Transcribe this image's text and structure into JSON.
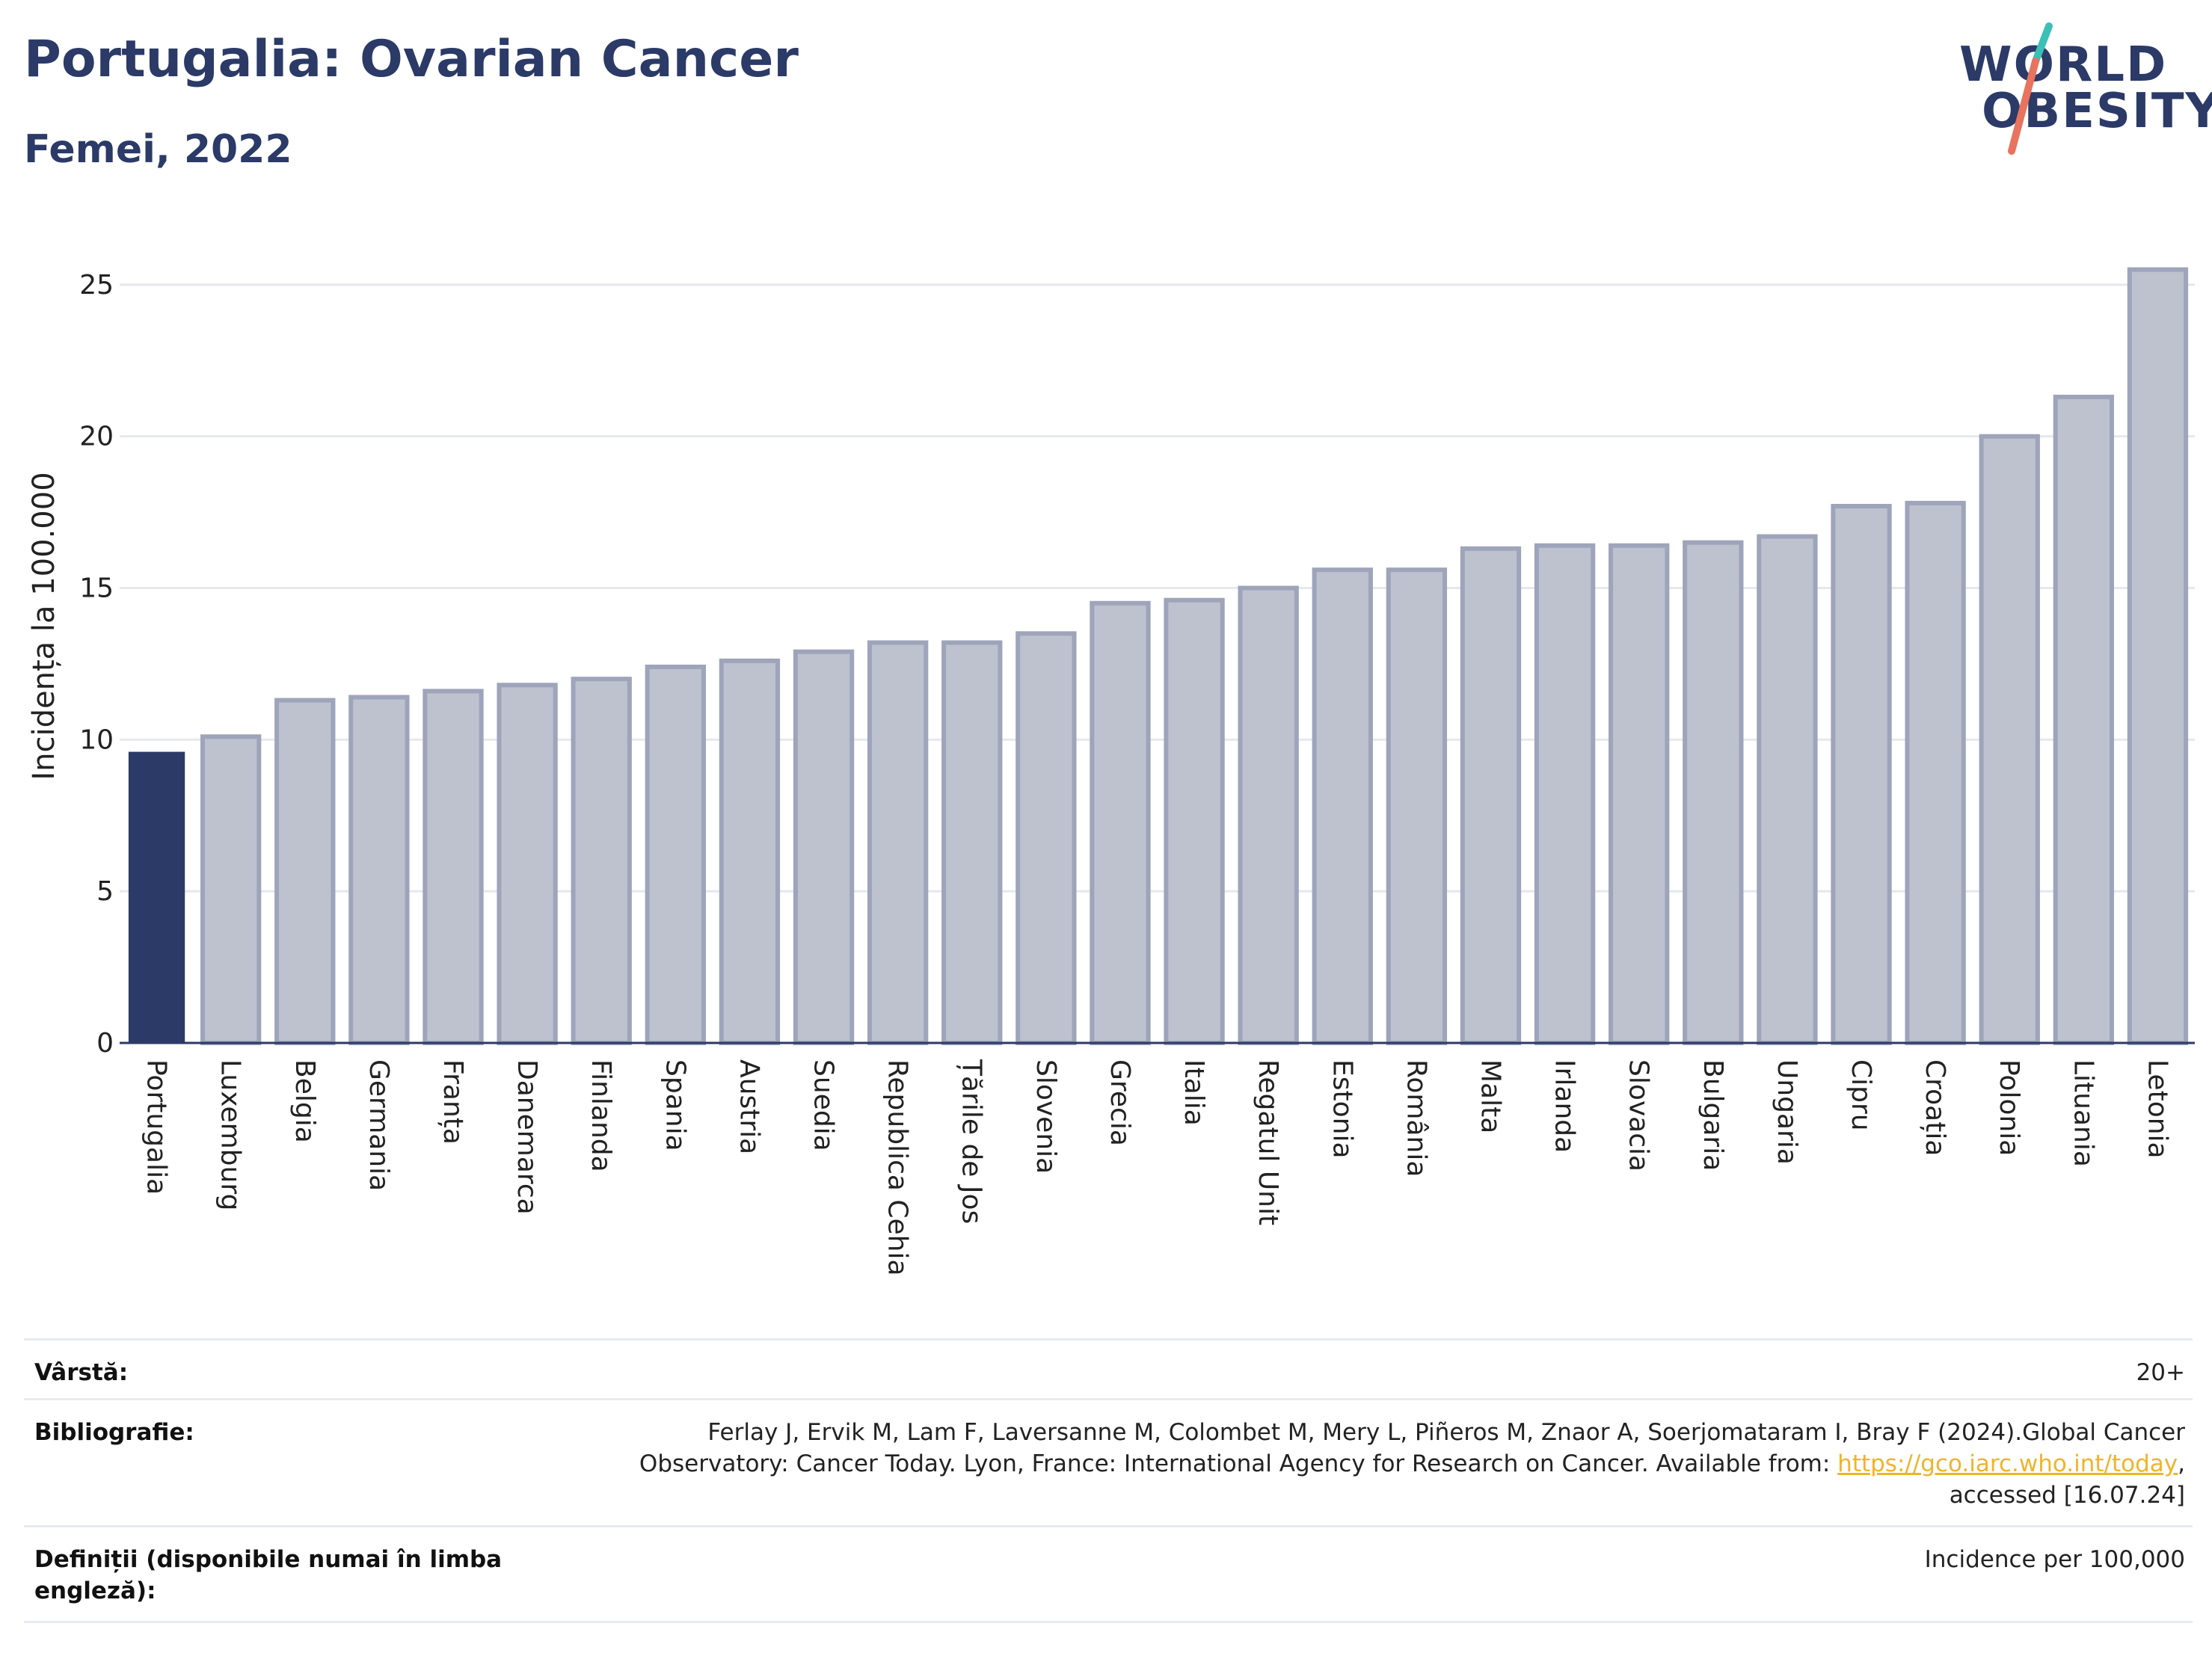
{
  "header": {
    "title": "Portugalia: Ovarian Cancer",
    "subtitle": "Femei, 2022",
    "logo_line1": "WORLD",
    "logo_line2": "OBESITY"
  },
  "colors": {
    "highlight_bar": "#2b3a67",
    "other_bar": "#bec2cf",
    "other_bar_stroke": "#9ea4ba",
    "text": "#2b3a67",
    "grid": "#e6e8ee",
    "logo_slash_teal": "#3cbfb7",
    "logo_slash_coral": "#e8735f",
    "link": "#f0b429"
  },
  "chart_data": {
    "type": "bar",
    "title": "Portugalia: Ovarian Cancer",
    "subtitle": "Femei, 2022",
    "xlabel": "",
    "ylabel": "Incidența la 100.000",
    "ylim": [
      0,
      26.5
    ],
    "yticks": [
      0,
      5,
      10,
      15,
      20,
      25
    ],
    "grid": true,
    "highlight": "Portugalia",
    "categories": [
      "Portugalia",
      "Luxemburg",
      "Belgia",
      "Germania",
      "Franța",
      "Danemarca",
      "Finlanda",
      "Spania",
      "Austria",
      "Suedia",
      "Republica Cehia",
      "Țările de Jos",
      "Slovenia",
      "Grecia",
      "Italia",
      "Regatul Unit",
      "Estonia",
      "România",
      "Malta",
      "Irlanda",
      "Slovacia",
      "Bulgaria",
      "Ungaria",
      "Cipru",
      "Croația",
      "Polonia",
      "Lituania",
      "Letonia"
    ],
    "values": [
      9.6,
      10.1,
      11.3,
      11.4,
      11.6,
      11.8,
      12.0,
      12.4,
      12.6,
      12.9,
      13.2,
      13.2,
      13.5,
      14.5,
      14.6,
      15.0,
      15.6,
      15.6,
      16.3,
      16.4,
      16.4,
      16.5,
      16.7,
      17.7,
      17.8,
      20.0,
      21.3,
      25.5
    ]
  },
  "footer": {
    "age_label": "Vârstă:",
    "age_value": "20+",
    "bib_label": "Bibliografie:",
    "bib_line1": "Ferlay J, Ervik M, Lam F, Laversanne M, Colombet M, Mery L, Piñeros M, Znaor A, Soerjomataram I, Bray F (2024).Global Cancer",
    "bib_line2_pre": "Observatory: Cancer Today. Lyon, France: International Agency for Research on Cancer. Available from: ",
    "bib_link": "https://gco.iarc.who.int/today",
    "bib_line2_post": ",",
    "bib_line3": "accessed [16.07.24]",
    "def_label_line1": "Definiții (disponibile numai în limba",
    "def_label_line2": "engleză):",
    "def_value": "Incidence per 100,000"
  }
}
